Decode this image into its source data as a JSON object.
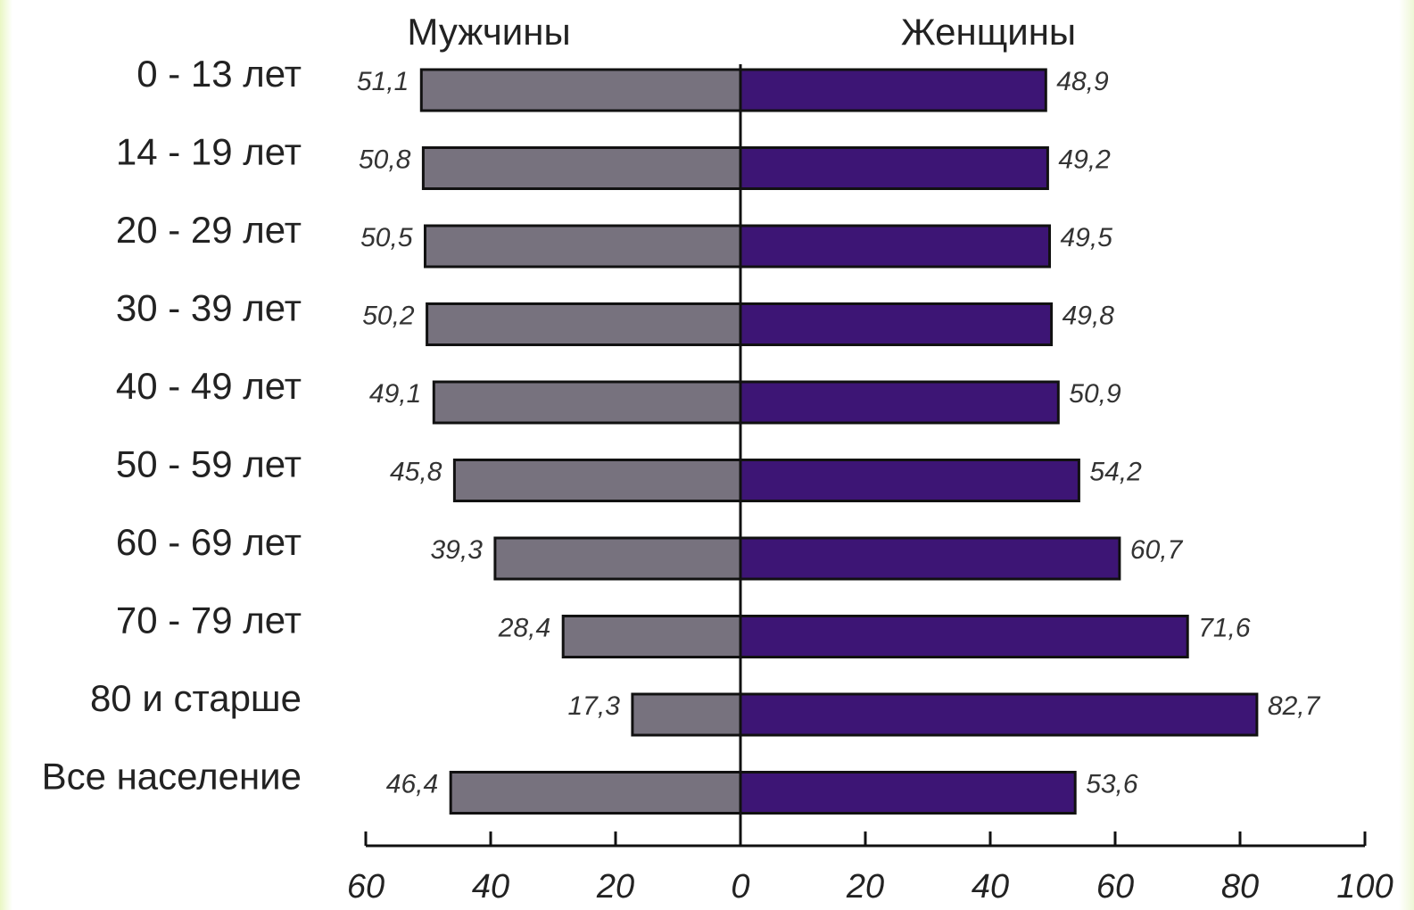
{
  "chart_data": {
    "type": "bar",
    "orientation": "horizontal-diverging",
    "title": "",
    "categories": [
      "0 - 13 лет",
      "14 - 19 лет",
      "20 - 29 лет",
      "30 - 39 лет",
      "40 - 49 лет",
      "50 - 59 лет",
      "60 - 69 лет",
      "70 - 79 лет",
      "80 и старше",
      "Все население"
    ],
    "series": [
      {
        "name": "Мужчины",
        "side": "left",
        "color": "#77727e",
        "values": [
          51.1,
          50.8,
          50.5,
          50.2,
          49.1,
          45.8,
          39.3,
          28.4,
          17.3,
          46.4
        ],
        "labels": [
          "51,1",
          "50,8",
          "50,5",
          "50,2",
          "49,1",
          "45,8",
          "39,3",
          "28,4",
          "17,3",
          "46,4"
        ]
      },
      {
        "name": "Женщины",
        "side": "right",
        "color": "#3d1575",
        "values": [
          48.9,
          49.2,
          49.5,
          49.8,
          50.9,
          54.2,
          60.7,
          71.6,
          82.7,
          53.6
        ],
        "labels": [
          "48,9",
          "49,2",
          "49,5",
          "49,8",
          "50,9",
          "54,2",
          "60,7",
          "71,6",
          "82,7",
          "53,6"
        ]
      }
    ],
    "xlim": [
      -60,
      100
    ],
    "x_ticks": [
      -60,
      -40,
      -20,
      0,
      20,
      40,
      60,
      80,
      100
    ],
    "x_tick_labels": [
      "60",
      "40",
      "20",
      "0",
      "20",
      "40",
      "60",
      "80",
      "100"
    ],
    "grid": false,
    "legend": "column headers above bars"
  }
}
